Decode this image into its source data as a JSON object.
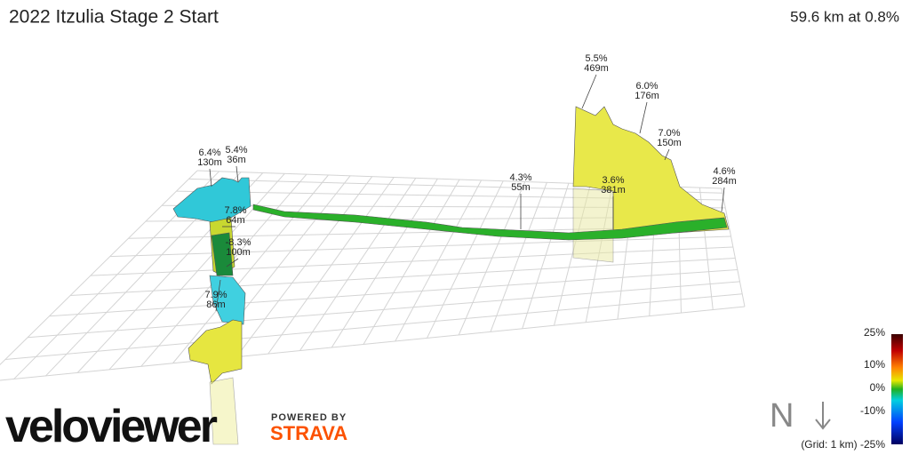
{
  "header": {
    "title": "2022 Itzulia Stage 2 Start",
    "summary": "59.6 km at 0.8%"
  },
  "annotations": [
    {
      "grade": "5.5%",
      "length": "469m"
    },
    {
      "grade": "6.0%",
      "length": "176m"
    },
    {
      "grade": "7.0%",
      "length": "150m"
    },
    {
      "grade": "4.6%",
      "length": "284m"
    },
    {
      "grade": "4.3%",
      "length": "55m"
    },
    {
      "grade": "3.6%",
      "length": "381m"
    },
    {
      "grade": "6.4%",
      "length": "130m"
    },
    {
      "grade": "5.4%",
      "length": "36m"
    },
    {
      "grade": "7.8%",
      "length": "64m"
    },
    {
      "grade": "-8.3%",
      "length": "100m"
    },
    {
      "grade": "7.9%",
      "length": "86m"
    }
  ],
  "legend": {
    "labels": [
      "25%",
      "10%",
      "0%",
      "-10%",
      "(Grid: 1 km) -25%"
    ]
  },
  "compass": "N",
  "branding": {
    "logo": "veloviewer",
    "powered": "POWERED BY",
    "partner": "STRAVA"
  }
}
